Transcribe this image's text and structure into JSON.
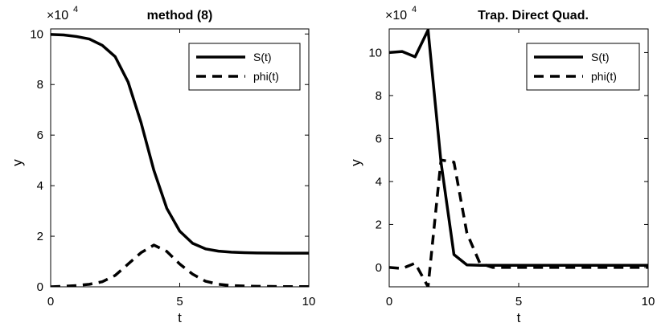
{
  "chart_data": [
    {
      "type": "line",
      "title": "method (8)",
      "xlabel": "t",
      "ylabel": "y",
      "xlim": [
        0,
        10
      ],
      "ylim": [
        0,
        10.2
      ],
      "y_multiplier": {
        "base": "×10",
        "exponent": "4"
      },
      "xticks": [
        0,
        5,
        10
      ],
      "yticks": [
        0,
        2,
        4,
        6,
        8,
        10
      ],
      "grid": false,
      "legend_position": "top-right",
      "series": [
        {
          "name": "S(t)",
          "style": "solid",
          "x": [
            0,
            0.5,
            1,
            1.5,
            2,
            2.5,
            3,
            3.5,
            4,
            4.5,
            5,
            5.5,
            6,
            6.5,
            7,
            7.5,
            8,
            8.5,
            9,
            9.5,
            10
          ],
          "y": [
            9.98,
            9.96,
            9.9,
            9.8,
            9.55,
            9.1,
            8.1,
            6.5,
            4.6,
            3.1,
            2.2,
            1.72,
            1.5,
            1.41,
            1.37,
            1.35,
            1.34,
            1.335,
            1.33,
            1.33,
            1.33
          ]
        },
        {
          "name": "phi(t)",
          "style": "dashed",
          "x": [
            0,
            0.5,
            1,
            1.5,
            2,
            2.5,
            3,
            3.5,
            4,
            4.5,
            5,
            5.5,
            6,
            6.5,
            7,
            7.5,
            8,
            8.5,
            9,
            9.5,
            10
          ],
          "y": [
            0.0,
            0.02,
            0.05,
            0.1,
            0.2,
            0.45,
            0.9,
            1.35,
            1.65,
            1.4,
            0.9,
            0.5,
            0.22,
            0.1,
            0.05,
            0.03,
            0.02,
            0.015,
            0.01,
            0.01,
            0.01
          ]
        }
      ]
    },
    {
      "type": "line",
      "title": "Trap. Direct Quad.",
      "xlabel": "t",
      "ylabel": "y",
      "xlim": [
        0,
        10
      ],
      "ylim": [
        -0.9,
        11.1
      ],
      "y_multiplier": {
        "base": "×10",
        "exponent": "4"
      },
      "xticks": [
        0,
        5,
        10
      ],
      "yticks": [
        0,
        2,
        4,
        6,
        8,
        10
      ],
      "grid": false,
      "legend_position": "top-right",
      "series": [
        {
          "name": "S(t)",
          "style": "solid",
          "x": [
            0,
            0.5,
            1,
            1.5,
            2,
            2.5,
            3,
            3.5,
            4,
            4.5,
            5,
            5.5,
            6,
            6.5,
            7,
            7.5,
            8,
            8.5,
            9,
            9.5,
            10
          ],
          "y": [
            10.0,
            10.05,
            9.8,
            11.05,
            4.9,
            0.6,
            0.12,
            0.1,
            0.1,
            0.1,
            0.1,
            0.1,
            0.1,
            0.1,
            0.1,
            0.1,
            0.1,
            0.1,
            0.1,
            0.1,
            0.1
          ]
        },
        {
          "name": "phi(t)",
          "style": "dashed",
          "x": [
            0,
            0.5,
            1,
            1.5,
            2,
            2.5,
            3,
            3.5,
            4,
            4.5,
            5,
            5.5,
            6,
            6.5,
            7,
            7.5,
            8,
            8.5,
            9,
            9.5,
            10
          ],
          "y": [
            0.0,
            -0.05,
            0.2,
            -0.9,
            5.0,
            4.9,
            1.6,
            0.2,
            0.0,
            0.0,
            0.0,
            0.0,
            0.0,
            0.0,
            0.0,
            0.0,
            0.0,
            0.0,
            0.0,
            0.0,
            0.0
          ]
        }
      ]
    }
  ]
}
